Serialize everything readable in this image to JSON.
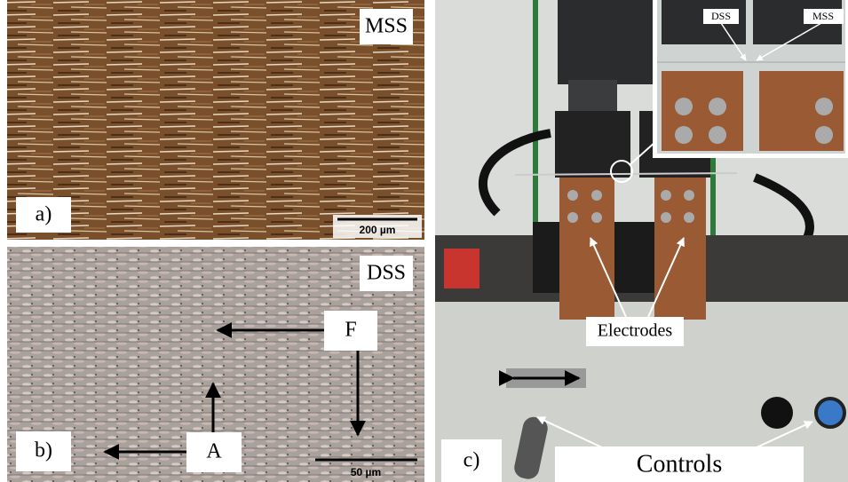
{
  "panels": [
    {
      "label": "a)",
      "material": "MSS",
      "scale_bar": "200 µm"
    },
    {
      "label": "b)",
      "material": "DSS",
      "scale_bar": "50 µm",
      "annotations": [
        "F",
        "A"
      ]
    },
    {
      "label": "c)",
      "inset_labels": [
        "DSS",
        "MSS"
      ],
      "callouts": [
        "Electrodes",
        "Controls"
      ]
    }
  ]
}
